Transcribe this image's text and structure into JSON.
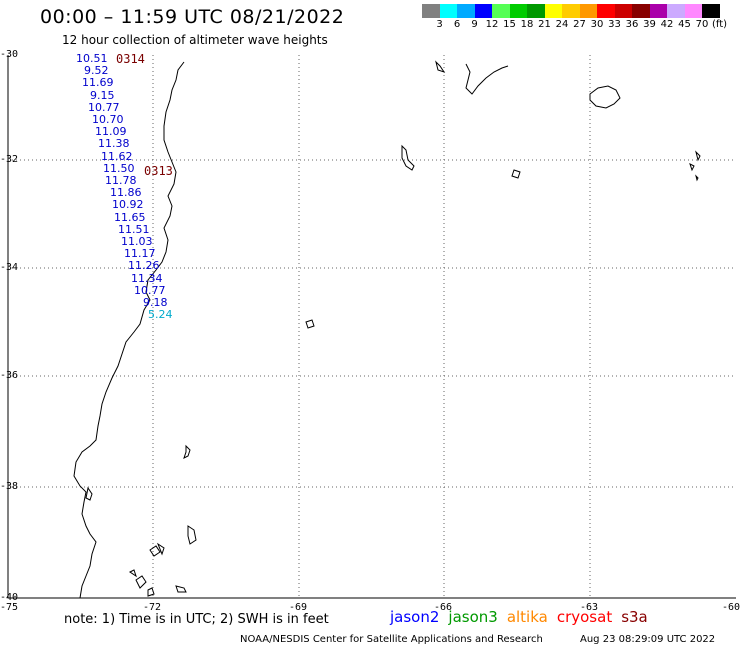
{
  "header": {
    "title": "00:00 – 11:59 UTC 08/21/2022",
    "subtitle": "12 hour collection of altimeter wave heights"
  },
  "legend": {
    "colors": [
      "#808080",
      "#00ffff",
      "#00aaff",
      "#0000ff",
      "#55ff55",
      "#00cc00",
      "#009900",
      "#ffff00",
      "#ffcc00",
      "#ff9900",
      "#ff0000",
      "#cc0000",
      "#880000",
      "#aa00aa",
      "#ccaaff",
      "#ff88ff",
      "#000000"
    ],
    "labels": [
      "3",
      "6",
      "9",
      "12",
      "15",
      "18",
      "21",
      "24",
      "27",
      "30",
      "33",
      "36",
      "39",
      "42",
      "45",
      "70",
      "(ft)"
    ]
  },
  "map": {
    "lat_labels": [
      "-30",
      "-32",
      "-34",
      "-36",
      "-38",
      "-40"
    ],
    "lon_labels": [
      "-75",
      "-72",
      "-69",
      "-66",
      "-63",
      "-60"
    ],
    "wave_heights": [
      {
        "text": "10.51",
        "color": "#0000cc"
      },
      {
        "text": "9.52",
        "color": "#0000cc"
      },
      {
        "text": "11.69",
        "color": "#0000cc"
      },
      {
        "text": "9.15",
        "color": "#0000cc"
      },
      {
        "text": "10.77",
        "color": "#0000cc"
      },
      {
        "text": "10.70",
        "color": "#0000cc"
      },
      {
        "text": "11.09",
        "color": "#0000cc"
      },
      {
        "text": "11.38",
        "color": "#0000cc"
      },
      {
        "text": "11.62",
        "color": "#0000cc"
      },
      {
        "text": "11.50",
        "color": "#0000cc"
      },
      {
        "text": "11.78",
        "color": "#0000cc"
      },
      {
        "text": "11.86",
        "color": "#0000cc"
      },
      {
        "text": "10.92",
        "color": "#0000cc"
      },
      {
        "text": "11.65",
        "color": "#0000cc"
      },
      {
        "text": "11.51",
        "color": "#0000cc"
      },
      {
        "text": "11.03",
        "color": "#0000cc"
      },
      {
        "text": "11.17",
        "color": "#0000cc"
      },
      {
        "text": "11.26",
        "color": "#0000cc"
      },
      {
        "text": "11.34",
        "color": "#0000cc"
      },
      {
        "text": "10.77",
        "color": "#0000cc"
      },
      {
        "text": "9.18",
        "color": "#0000cc"
      },
      {
        "text": "5.24",
        "color": "#00aacc"
      }
    ],
    "pass_times": [
      "0314",
      "0313"
    ]
  },
  "footer": {
    "note": "note: 1) Time is in UTC; 2) SWH is in feet",
    "satellites": [
      {
        "name": "jason2",
        "color": "#0000ff"
      },
      {
        "name": "jason3",
        "color": "#009900"
      },
      {
        "name": "altika",
        "color": "#ff8800"
      },
      {
        "name": "cryosat",
        "color": "#ff0000"
      },
      {
        "name": "s3a",
        "color": "#880000"
      }
    ],
    "credit": "NOAA/NESDIS Center for Satellite Applications and Research",
    "timestamp": "Aug 23 08:29:09 UTC 2022"
  }
}
